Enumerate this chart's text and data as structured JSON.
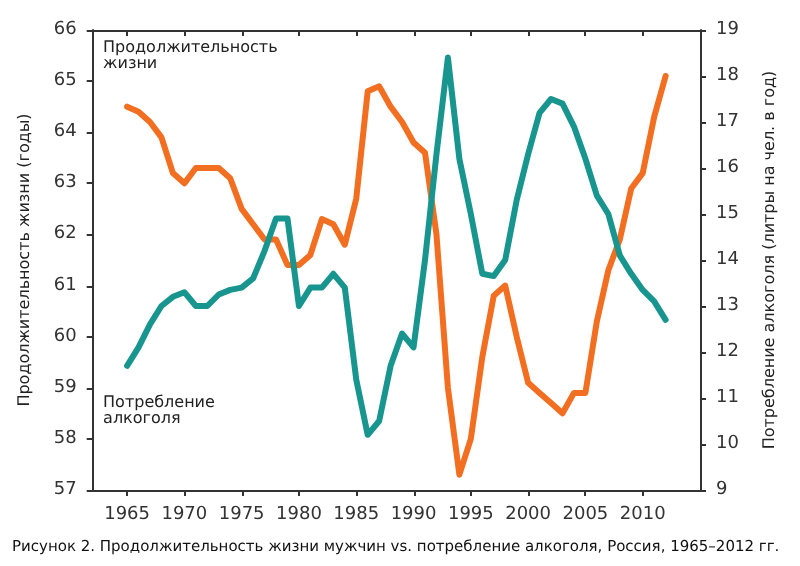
{
  "chart_data": {
    "type": "line",
    "ylabel": "Продолжительность жизни (годы)",
    "y2label": "Потребление алкоголя (литры на чел. в год)",
    "annotations": [
      "Рисунок 2. Продолжительность жизни мужчин vs. потребление алкоголя, Россия, 1965–2012 гг."
    ],
    "x": [
      1965,
      1966,
      1967,
      1968,
      1969,
      1970,
      1971,
      1972,
      1973,
      1974,
      1975,
      1976,
      1977,
      1978,
      1979,
      1980,
      1981,
      1982,
      1983,
      1984,
      1985,
      1986,
      1987,
      1988,
      1989,
      1990,
      1991,
      1992,
      1993,
      1994,
      1995,
      1996,
      1997,
      1998,
      1999,
      2000,
      2001,
      2002,
      2003,
      2004,
      2005,
      2006,
      2007,
      2008,
      2009,
      2010,
      2011,
      2012
    ],
    "series": [
      {
        "name": "Продолжительность жизни",
        "color": "#f26f21",
        "values": [
          64.5,
          64.4,
          64.2,
          63.9,
          63.2,
          63.0,
          63.3,
          63.3,
          63.3,
          63.1,
          62.5,
          62.2,
          61.9,
          61.9,
          61.4,
          61.4,
          61.6,
          62.3,
          62.2,
          61.8,
          62.7,
          64.8,
          64.9,
          64.5,
          64.2,
          63.8,
          63.6,
          62.0,
          59.0,
          57.3,
          58.0,
          59.6,
          60.8,
          61.0,
          60.0,
          59.1,
          58.9,
          58.7,
          58.5,
          58.9,
          58.9,
          60.3,
          61.3,
          61.9,
          62.9,
          63.2,
          64.3,
          65.1
        ]
      },
      {
        "name": "Потребление алкоголя",
        "color": "#17958e",
        "axis": "y2",
        "values": [
          11.7,
          12.1,
          12.6,
          13.0,
          13.2,
          13.3,
          13.0,
          13.0,
          13.25,
          13.35,
          13.4,
          13.6,
          14.2,
          14.9,
          14.9,
          13.0,
          13.4,
          13.4,
          13.7,
          13.4,
          11.4,
          10.2,
          10.5,
          11.7,
          12.4,
          12.1,
          14.0,
          16.3,
          18.4,
          16.2,
          15.0,
          13.7,
          13.65,
          14.0,
          15.3,
          16.3,
          17.2,
          17.5,
          17.4,
          16.9,
          16.2,
          15.4,
          15.0,
          14.1,
          13.7,
          13.35,
          13.1,
          12.7
        ]
      }
    ],
    "xlim": [
      1962,
      2015
    ],
    "xticks": [
      1965,
      1970,
      1975,
      1980,
      1985,
      1990,
      1995,
      2000,
      2005,
      2010
    ],
    "ylim": [
      57,
      66
    ],
    "yticks": [
      57,
      58,
      59,
      60,
      61,
      62,
      63,
      64,
      65,
      66
    ],
    "y2lim": [
      9,
      19
    ],
    "y2ticks": [
      9,
      10,
      11,
      12,
      13,
      14,
      15,
      16,
      17,
      18,
      19
    ],
    "legend": false,
    "grid": false,
    "marker": "none",
    "line_style": "solid"
  }
}
